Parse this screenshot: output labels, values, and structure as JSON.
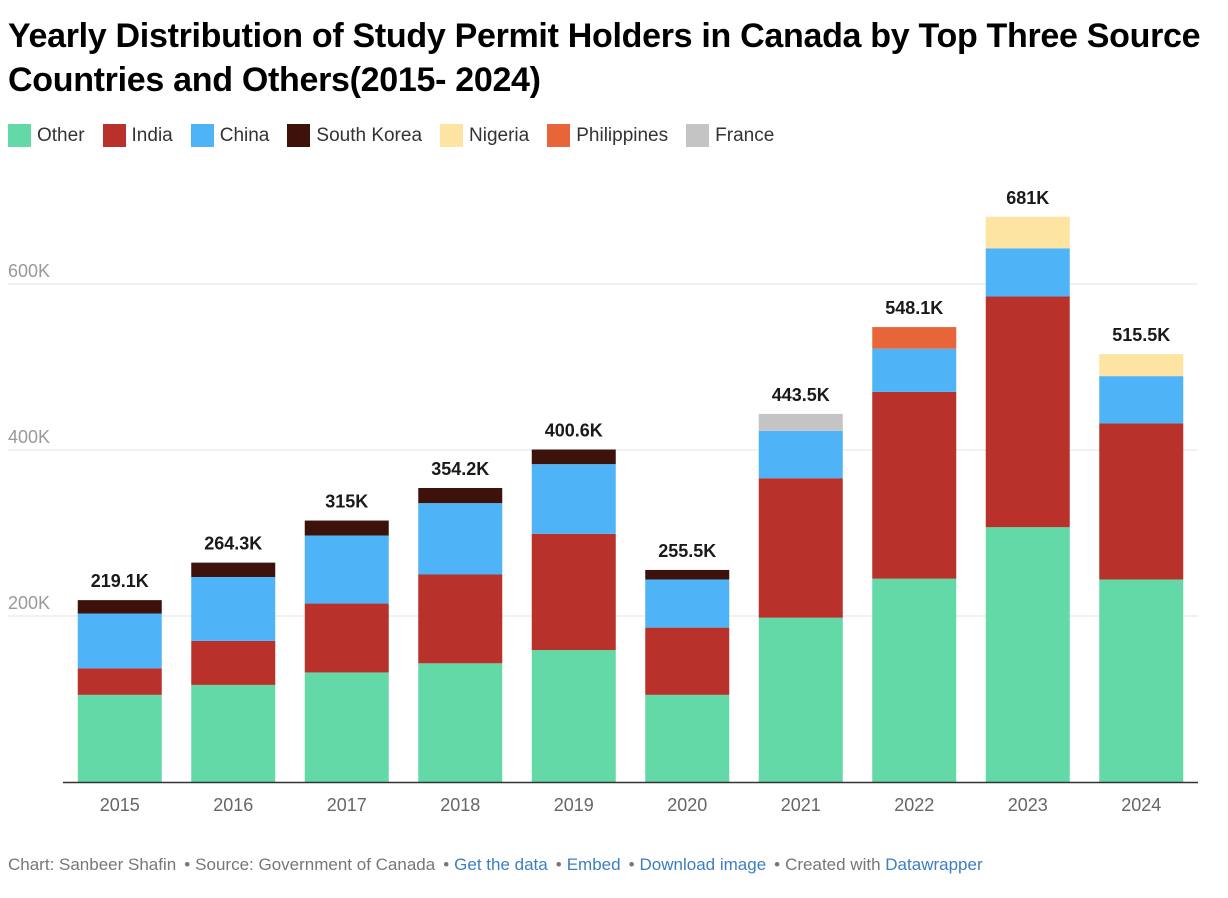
{
  "title": "Yearly Distribution of Study Permit Holders in Canada by Top Three Source Countries and Others(2015- 2024)",
  "colors": {
    "Other": "#62d9a7",
    "India": "#b8312a",
    "China": "#4fb4f7",
    "South Korea": "#3d120a",
    "Nigeria": "#fde4a2",
    "Philippines": "#e8653a",
    "France": "#c4c4c4"
  },
  "chart_data": {
    "type": "bar",
    "stacked": true,
    "categories": [
      "2015",
      "2016",
      "2017",
      "2018",
      "2019",
      "2020",
      "2021",
      "2022",
      "2023",
      "2024"
    ],
    "series": [
      {
        "name": "Other",
        "values": [
          105000,
          117000,
          132000,
          143000,
          159000,
          105000,
          198000,
          245000,
          307000,
          244000
        ]
      },
      {
        "name": "India",
        "values": [
          32000,
          53000,
          83000,
          107000,
          140000,
          81000,
          168000,
          225000,
          278000,
          188000
        ]
      },
      {
        "name": "China",
        "values": [
          66000,
          77000,
          82000,
          86000,
          84000,
          58000,
          57000,
          52000,
          58000,
          57000
        ]
      },
      {
        "name": "South Korea",
        "values": [
          16100,
          17300,
          18000,
          18200,
          17600,
          11500,
          0,
          0,
          0,
          0
        ]
      },
      {
        "name": "Nigeria",
        "values": [
          0,
          0,
          0,
          0,
          0,
          0,
          0,
          0,
          38000,
          26500
        ]
      },
      {
        "name": "Philippines",
        "values": [
          0,
          0,
          0,
          0,
          0,
          0,
          0,
          26100,
          0,
          0
        ]
      },
      {
        "name": "France",
        "values": [
          0,
          0,
          0,
          0,
          0,
          0,
          20500,
          0,
          0,
          0
        ]
      }
    ],
    "totals": [
      "219.1K",
      "264.3K",
      "315K",
      "354.2K",
      "400.6K",
      "255.5K",
      "443.5K",
      "548.1K",
      "681K",
      "515.5K"
    ],
    "y_ticks": [
      200000,
      400000,
      600000
    ],
    "y_tick_labels": [
      "200K",
      "400K",
      "600K"
    ],
    "ylim": [
      0,
      720000
    ],
    "xlabel": "",
    "ylabel": "",
    "grid": true,
    "legend_position": "top-left"
  },
  "footer": {
    "credit": "Chart: Sanbeer Shafin",
    "source": "Source: Government of Canada",
    "get_data": "Get the data",
    "embed": "Embed",
    "download": "Download image",
    "created_with": "Created with",
    "tool": "Datawrapper"
  }
}
